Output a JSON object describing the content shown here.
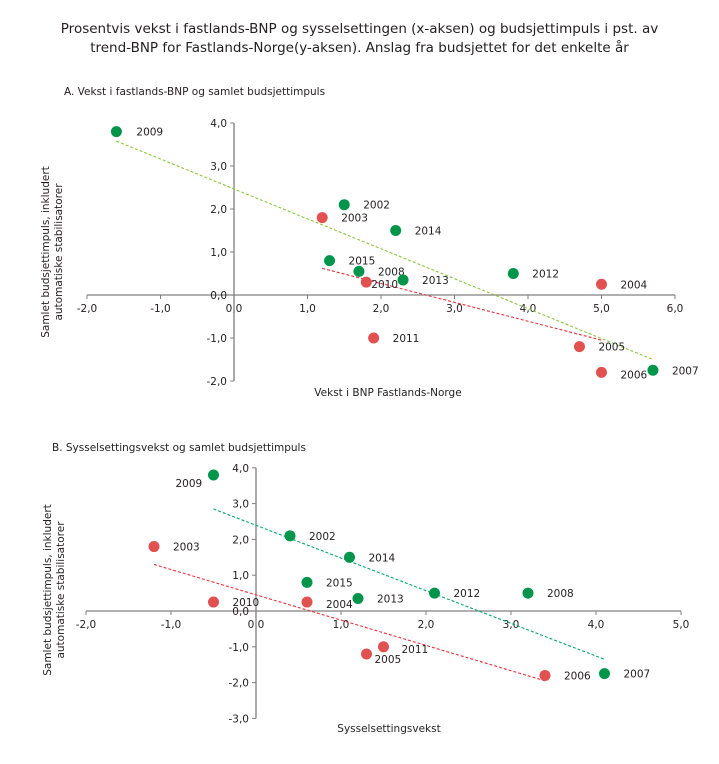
{
  "title_lines": [
    "Prosentvis vekst i fastlands-BNP og sysselsettingen (x-aksen) og budsjettimpuls i pst. av",
    "trend-BNP for Fastlands-Norge(y-aksen). Anslag fra budsjettet for det enkelte år"
  ],
  "colors": {
    "green": "#00954a",
    "red": "#e05150",
    "green_trend_A": "#8cc63f",
    "green_trend_B": "#00a86b",
    "red_trend": "#e8323c",
    "axis": "#808080"
  },
  "chart_data": [
    {
      "type": "scatter",
      "id": "A",
      "title": "A. Vekst i fastlands-BNP og samlet budsjettimpuls",
      "xlabel": "Vekst i BNP Fastlands-Norge",
      "ylabel_lines": [
        "Samlet budsjettimpuls, inkludert",
        "automatiske stabilisatorer"
      ],
      "xlim": [
        -2,
        6
      ],
      "ylim": [
        -2,
        4
      ],
      "xticks": [
        -2,
        -1,
        0,
        1,
        2,
        3,
        4,
        5,
        6
      ],
      "xtick_labels": [
        "-2,0",
        "-1,0",
        "0,0",
        "1,0",
        "2,0",
        "3,0",
        "4,0",
        "5,0",
        "6,0"
      ],
      "yticks": [
        -2,
        -1,
        0,
        1,
        2,
        3,
        4
      ],
      "ytick_labels": [
        "-2,0",
        "-1,0",
        "0,0",
        "1,0",
        "2,0",
        "3,0",
        "4,0"
      ],
      "grid": false,
      "series": [
        {
          "name": "green",
          "color": "#00954a",
          "points": [
            {
              "label": "2009",
              "x": -1.6,
              "y": 3.8
            },
            {
              "label": "2002",
              "x": 1.5,
              "y": 2.1
            },
            {
              "label": "2014",
              "x": 2.2,
              "y": 1.5
            },
            {
              "label": "2015",
              "x": 1.3,
              "y": 0.8
            },
            {
              "label": "2008",
              "x": 1.7,
              "y": 0.55
            },
            {
              "label": "2013",
              "x": 2.3,
              "y": 0.35
            },
            {
              "label": "2012",
              "x": 3.8,
              "y": 0.5
            },
            {
              "label": "2007",
              "x": 5.7,
              "y": -1.75
            }
          ]
        },
        {
          "name": "red",
          "color": "#e05150",
          "points": [
            {
              "label": "2003",
              "x": 1.2,
              "y": 1.8
            },
            {
              "label": "2010",
              "x": 1.8,
              "y": 0.3
            },
            {
              "label": "2004",
              "x": 5.0,
              "y": 0.25
            },
            {
              "label": "2011",
              "x": 1.9,
              "y": -1.0
            },
            {
              "label": "2005",
              "x": 4.7,
              "y": -1.2
            },
            {
              "label": "2006",
              "x": 5.0,
              "y": -1.8
            }
          ]
        }
      ],
      "trendlines": [
        {
          "name": "green-trend",
          "color": "#8cc63f",
          "from": [
            -1.6,
            3.58
          ],
          "to": [
            5.7,
            -1.5
          ]
        },
        {
          "name": "red-trend",
          "color": "#e8323c",
          "from": [
            1.2,
            0.62
          ],
          "to": [
            5.0,
            -1.05
          ]
        }
      ]
    },
    {
      "type": "scatter",
      "id": "B",
      "title": "B. Sysselsettingsvekst og samlet budsjettimpuls",
      "xlabel": "Sysselsettingsvekst",
      "ylabel_lines": [
        "Samlet budsjettimpuls, inkludert",
        "automatiske  stabilisatorer"
      ],
      "xlim": [
        -2,
        5
      ],
      "ylim": [
        -3,
        4
      ],
      "xticks": [
        -2,
        -1,
        0,
        1,
        2,
        3,
        4,
        5
      ],
      "xtick_labels": [
        "-2,0",
        "-1,0",
        "0,0",
        "1,0",
        "2,0",
        "3,0",
        "4,0",
        "5,0"
      ],
      "yticks": [
        -3,
        -2,
        -1,
        0,
        1,
        2,
        3,
        4
      ],
      "ytick_labels": [
        "-3,0",
        "-2,0",
        "-1,0",
        "0,0",
        "1,0",
        "2,0",
        "3,0",
        "4,0"
      ],
      "grid": false,
      "series": [
        {
          "name": "green",
          "color": "#00954a",
          "points": [
            {
              "label": "2009",
              "x": -0.5,
              "y": 3.8
            },
            {
              "label": "2002",
              "x": 0.4,
              "y": 2.1
            },
            {
              "label": "2014",
              "x": 1.1,
              "y": 1.5
            },
            {
              "label": "2015",
              "x": 0.6,
              "y": 0.8
            },
            {
              "label": "2013",
              "x": 1.2,
              "y": 0.35
            },
            {
              "label": "2012",
              "x": 2.1,
              "y": 0.5
            },
            {
              "label": "2008",
              "x": 3.2,
              "y": 0.5
            },
            {
              "label": "2007",
              "x": 4.1,
              "y": -1.75
            }
          ]
        },
        {
          "name": "red",
          "color": "#e05150",
          "points": [
            {
              "label": "2003",
              "x": -1.2,
              "y": 1.8
            },
            {
              "label": "2010",
              "x": -0.5,
              "y": 0.25
            },
            {
              "label": "2004",
              "x": 0.6,
              "y": 0.25
            },
            {
              "label": "2011",
              "x": 1.5,
              "y": -1.0
            },
            {
              "label": "2005",
              "x": 1.3,
              "y": -1.2
            },
            {
              "label": "2006",
              "x": 3.4,
              "y": -1.8
            }
          ]
        }
      ],
      "trendlines": [
        {
          "name": "green-trend",
          "color": "#00a86b",
          "from": [
            -0.5,
            2.85
          ],
          "to": [
            4.1,
            -1.35
          ]
        },
        {
          "name": "red-trend",
          "color": "#e8323c",
          "from": [
            -1.2,
            1.3
          ],
          "to": [
            3.4,
            -1.95
          ]
        }
      ]
    }
  ]
}
